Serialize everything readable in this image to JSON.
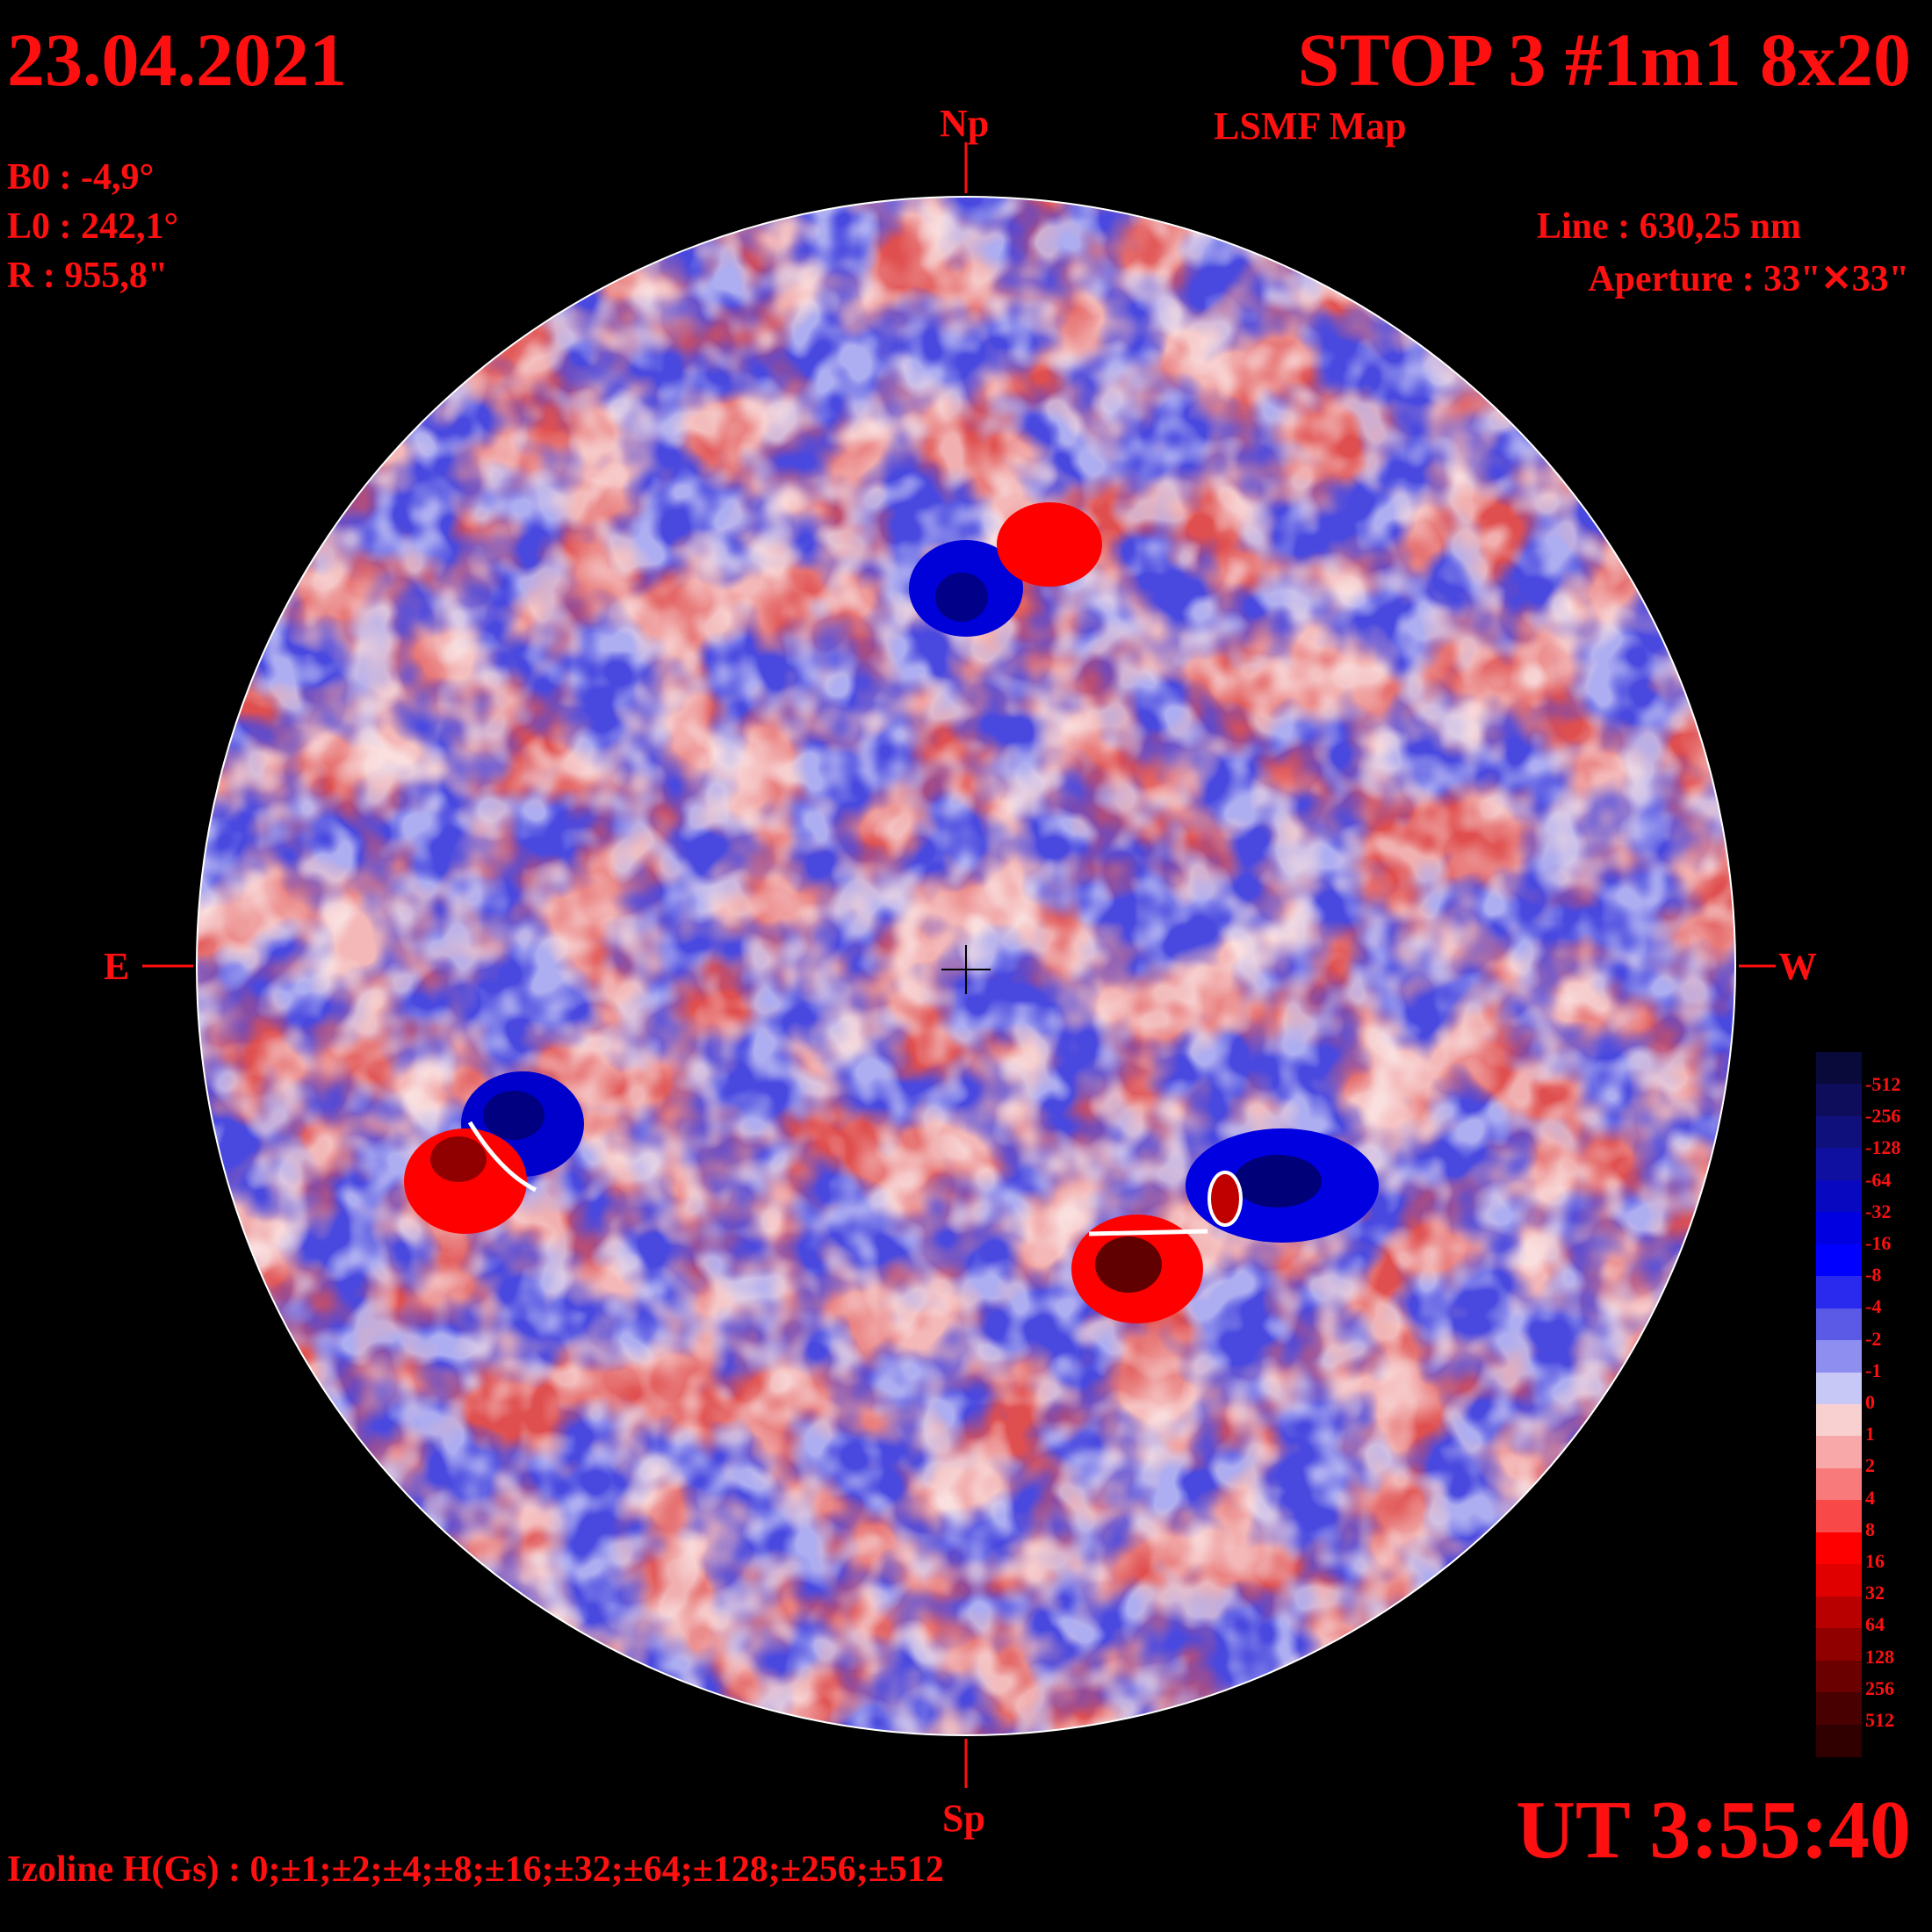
{
  "header": {
    "date": "23.04.2021",
    "title": "STOP 3 #1m1 8x20",
    "subtitle": "LSMF  Map"
  },
  "params": {
    "b0": "B0 : -4,9°",
    "l0": "L0 : 242,1°",
    "r": "R  : 955,8\"",
    "line": "Line :  630,25 nm",
    "aperture": "Aperture : 33\"✕33\""
  },
  "compass": {
    "north": "Np",
    "south": "Sp",
    "east": "E",
    "west": "W"
  },
  "footer": {
    "ut": "UT 3:55:40",
    "izoline": "Izoline H(Gs) : 0;±1;±2;±4;±8;±16;±32;±64;±128;±256;±512"
  },
  "colorbar": {
    "labels": [
      "-512",
      "-256",
      "-128",
      "-64",
      "-32",
      "-16",
      "-8",
      "-4",
      "-2",
      "-1",
      "0",
      "1",
      "2",
      "4",
      "8",
      "16",
      "32",
      "64",
      "128",
      "256",
      "512"
    ],
    "colors": [
      "#0a0a3a",
      "#0d0d5c",
      "#10107c",
      "#1010a0",
      "#0808c0",
      "#0000e0",
      "#0000ff",
      "#2a2aee",
      "#5a5ae6",
      "#8e8ef0",
      "#c8c8f6",
      "#f8d0d0",
      "#f8a8a8",
      "#f87a7a",
      "#f84848",
      "#ff0000",
      "#e00000",
      "#b80000",
      "#900000",
      "#6a0000",
      "#480000",
      "#300000"
    ]
  }
}
